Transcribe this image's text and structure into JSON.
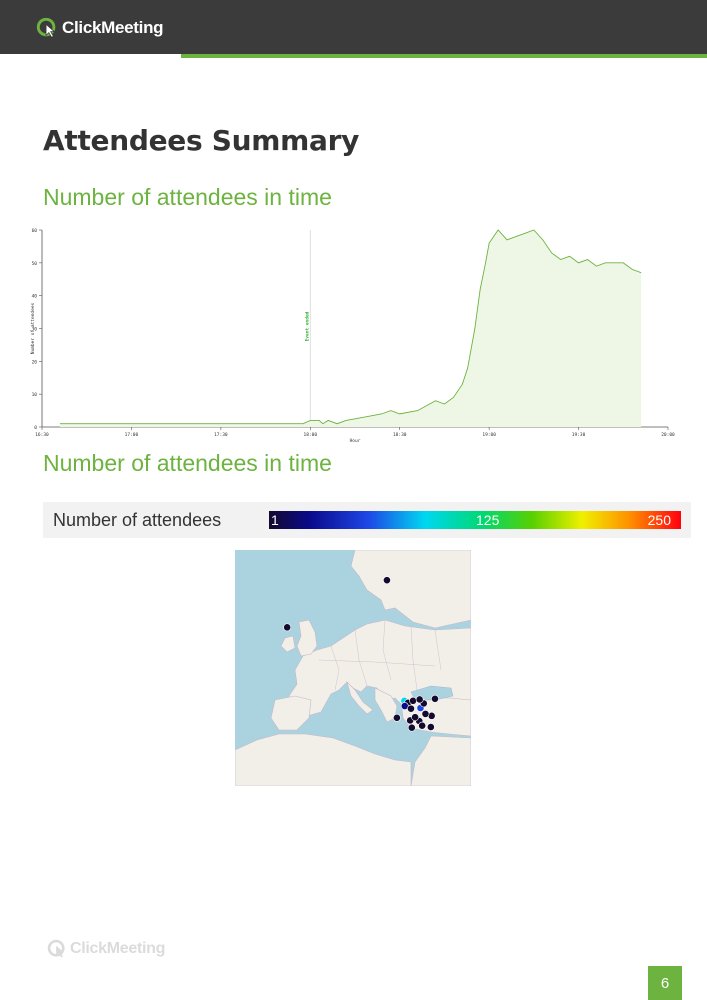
{
  "header": {
    "brand": "ClickMeeting"
  },
  "page_title": "Attendees Summary",
  "sections": [
    {
      "title": "Number of attendees in time"
    },
    {
      "title": "Number of attendees in time"
    }
  ],
  "colors": {
    "accent": "#6cb33f",
    "header_bg": "#3c3b3b",
    "title": "#333333"
  },
  "chart_data": {
    "type": "area",
    "xlabel": "Hour",
    "ylabel": "Number of attendees",
    "ylim": [
      0,
      60
    ],
    "y_ticks": [
      "0",
      "10",
      "20",
      "30",
      "40",
      "50",
      "60"
    ],
    "x_ticks": [
      "16:30",
      "17:00",
      "17:30",
      "18:00",
      "18:30",
      "19:00",
      "19:30",
      "20:00"
    ],
    "event_marker": {
      "x": "18:00",
      "label": "Event ended"
    },
    "x": [
      16.6,
      17.0,
      17.5,
      17.96,
      18.0,
      18.05,
      18.07,
      18.1,
      18.15,
      18.2,
      18.3,
      18.4,
      18.45,
      18.5,
      18.6,
      18.7,
      18.75,
      18.8,
      18.85,
      18.88,
      18.92,
      18.95,
      18.98,
      19.0,
      19.05,
      19.1,
      19.15,
      19.2,
      19.25,
      19.3,
      19.35,
      19.4,
      19.45,
      19.5,
      19.55,
      19.6,
      19.65,
      19.7,
      19.75,
      19.8,
      19.85
    ],
    "y": [
      1,
      1,
      1,
      1,
      2,
      2,
      1,
      2,
      1,
      2,
      3,
      4,
      5,
      4,
      5,
      8,
      7,
      9,
      13,
      18,
      30,
      42,
      50,
      56,
      60,
      57,
      58,
      59,
      60,
      57,
      53,
      51,
      52,
      50,
      51,
      49,
      50,
      50,
      50,
      48,
      47
    ]
  },
  "legend": {
    "label": "Number of attendees",
    "min": "1",
    "mid": "125",
    "max": "250"
  },
  "map": {
    "markers": [
      {
        "lat": 59.4,
        "lon": 24.7,
        "level": 0.02
      },
      {
        "lat": 52.2,
        "lon": 0.6,
        "level": 0.02
      },
      {
        "lat": 41.0,
        "lon": 28.9,
        "level": 0.35
      },
      {
        "lat": 40.7,
        "lon": 29.8,
        "level": 0.05
      },
      {
        "lat": 40.2,
        "lon": 29.0,
        "level": 0.1
      },
      {
        "lat": 39.9,
        "lon": 32.8,
        "level": 0.3
      },
      {
        "lat": 38.4,
        "lon": 27.1,
        "level": 0.05
      },
      {
        "lat": 37.9,
        "lon": 32.5,
        "level": 0.03
      },
      {
        "lat": 38.7,
        "lon": 35.5,
        "level": 0.02
      },
      {
        "lat": 41.3,
        "lon": 36.3,
        "level": 0.02
      },
      {
        "lat": 37.0,
        "lon": 35.3,
        "level": 0.02
      },
      {
        "lat": 39.8,
        "lon": 30.5,
        "level": 0.04
      },
      {
        "lat": 41.0,
        "lon": 31.0,
        "level": 0.03
      },
      {
        "lat": 38.0,
        "lon": 30.3,
        "level": 0.03
      },
      {
        "lat": 39.0,
        "lon": 34.0,
        "level": 0.02
      },
      {
        "lat": 40.6,
        "lon": 33.6,
        "level": 0.02
      },
      {
        "lat": 37.2,
        "lon": 33.2,
        "level": 0.02
      },
      {
        "lat": 38.5,
        "lon": 31.5,
        "level": 0.03
      },
      {
        "lat": 36.9,
        "lon": 30.7,
        "level": 0.02
      },
      {
        "lat": 41.2,
        "lon": 32.6,
        "level": 0.02
      }
    ]
  },
  "footer": {
    "brand": "ClickMeeting",
    "page_number": "6"
  }
}
